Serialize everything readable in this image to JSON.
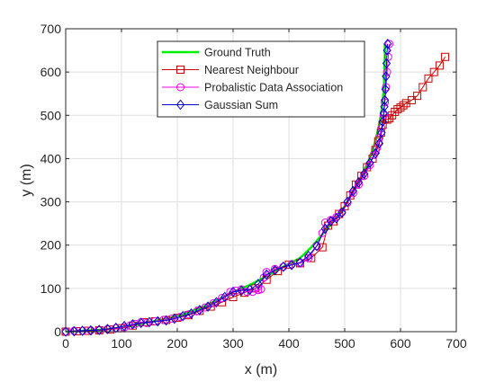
{
  "chart_data": {
    "type": "line",
    "title": "",
    "xlabel": "x (m)",
    "ylabel": "y (m)",
    "xlim": [
      0,
      700
    ],
    "ylim": [
      0,
      700
    ],
    "xticks": [
      0,
      100,
      200,
      300,
      400,
      500,
      600,
      700
    ],
    "yticks": [
      0,
      100,
      200,
      300,
      400,
      500,
      600,
      700
    ],
    "grid": true,
    "legend_position": "top-center",
    "series": [
      {
        "name": "Ground Truth",
        "color": "#00ee00",
        "marker": "none",
        "x": [
          0,
          30,
          60,
          90,
          120,
          150,
          180,
          210,
          240,
          270,
          300,
          330,
          360,
          390,
          420,
          440,
          460,
          480,
          500,
          515,
          530,
          545,
          555,
          562,
          567,
          570,
          571,
          572,
          572
        ],
        "y": [
          0,
          2,
          4,
          8,
          14,
          22,
          30,
          40,
          54,
          72,
          92,
          108,
          128,
          150,
          170,
          195,
          225,
          255,
          290,
          325,
          360,
          400,
          440,
          480,
          520,
          560,
          600,
          630,
          665
        ]
      },
      {
        "name": "Nearest Neighbour",
        "color": "#cc0000",
        "marker": "square",
        "x": [
          0,
          20,
          40,
          60,
          80,
          100,
          120,
          140,
          160,
          180,
          200,
          220,
          240,
          260,
          280,
          300,
          320,
          340,
          360,
          380,
          400,
          420,
          440,
          460,
          470,
          480,
          490,
          500,
          510,
          520,
          530,
          540,
          550,
          555,
          560,
          565,
          568,
          572,
          576,
          580,
          585,
          590,
          595,
          600,
          605,
          610,
          620,
          630,
          640,
          650,
          660,
          670,
          680
        ],
        "y": [
          0,
          1,
          2,
          3,
          5,
          8,
          14,
          22,
          24,
          27,
          32,
          38,
          48,
          58,
          68,
          80,
          90,
          100,
          120,
          140,
          155,
          158,
          170,
          195,
          245,
          255,
          272,
          290,
          315,
          340,
          360,
          380,
          400,
          420,
          440,
          460,
          478,
          492,
          490,
          493,
          500,
          508,
          514,
          518,
          523,
          528,
          535,
          545,
          565,
          585,
          600,
          615,
          635
        ]
      },
      {
        "name": "Probalistic Data Association",
        "color": "#ee00ee",
        "marker": "circle",
        "x": [
          0,
          15,
          30,
          45,
          60,
          75,
          90,
          105,
          115,
          125,
          135,
          145,
          160,
          175,
          190,
          205,
          220,
          235,
          250,
          265,
          280,
          295,
          305,
          315,
          325,
          335,
          345,
          350,
          355,
          360,
          375,
          390,
          405,
          420,
          435,
          450,
          460,
          465,
          475,
          485,
          495,
          505,
          515,
          525,
          535,
          545,
          552,
          558,
          562,
          566,
          570,
          572,
          574,
          576,
          578,
          580
        ],
        "y": [
          0,
          2,
          2,
          3,
          4,
          6,
          8,
          10,
          14,
          18,
          22,
          20,
          24,
          27,
          30,
          34,
          40,
          47,
          56,
          66,
          78,
          92,
          95,
          98,
          92,
          92,
          96,
          98,
          125,
          138,
          145,
          150,
          156,
          158,
          170,
          198,
          228,
          252,
          258,
          265,
          276,
          298,
          320,
          340,
          360,
          385,
          408,
          425,
          448,
          470,
          500,
          530,
          565,
          600,
          635,
          665
        ]
      },
      {
        "name": "Gaussian Sum",
        "color": "#0000cc",
        "marker": "diamond",
        "x": [
          0,
          15,
          30,
          45,
          60,
          75,
          90,
          105,
          120,
          135,
          150,
          165,
          180,
          195,
          210,
          225,
          240,
          255,
          270,
          285,
          300,
          315,
          330,
          345,
          360,
          375,
          390,
          405,
          420,
          435,
          450,
          465,
          475,
          485,
          495,
          505,
          515,
          525,
          535,
          545,
          555,
          562,
          566,
          568,
          570,
          571,
          572,
          573,
          574,
          575,
          576,
          577
        ],
        "y": [
          0,
          1,
          2,
          3,
          4,
          6,
          9,
          13,
          17,
          20,
          22,
          24,
          26,
          30,
          36,
          42,
          50,
          58,
          68,
          80,
          92,
          95,
          97,
          110,
          132,
          142,
          150,
          154,
          160,
          175,
          198,
          238,
          255,
          262,
          275,
          300,
          325,
          345,
          365,
          390,
          412,
          435,
          460,
          485,
          505,
          520,
          535,
          560,
          590,
          620,
          650,
          665
        ]
      }
    ]
  }
}
